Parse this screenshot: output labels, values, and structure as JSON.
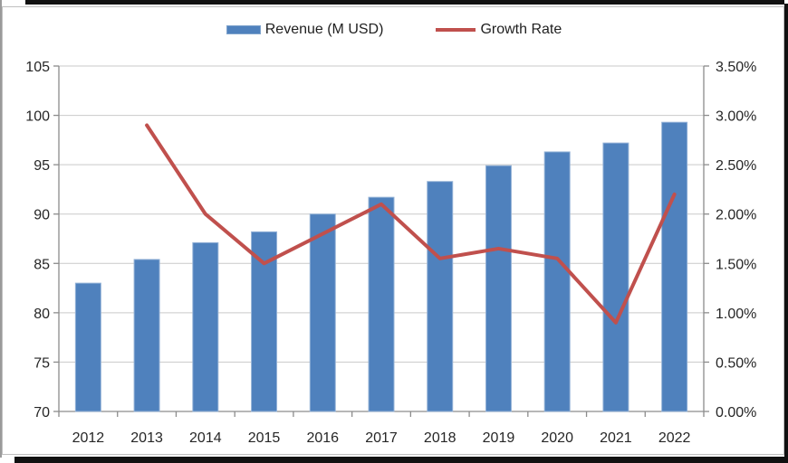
{
  "legend": {
    "items": [
      {
        "label": "Revenue (M USD)",
        "swatch": "bar"
      },
      {
        "label": "Growth Rate",
        "swatch": "line"
      }
    ]
  },
  "colors": {
    "bar_fill": "#4F81BD",
    "bar_border": "#95B3D7",
    "line": "#C0504D",
    "gridline": "#C9C9C9",
    "axis": "#8C8C8C",
    "label": "#262626"
  },
  "chart_data": {
    "type": "bar",
    "subtype": "combo-bar-line",
    "title": "",
    "grid": true,
    "legend_position": "top",
    "categories": [
      "2012",
      "2013",
      "2014",
      "2015",
      "2016",
      "2017",
      "2018",
      "2019",
      "2020",
      "2021",
      "2022"
    ],
    "series": [
      {
        "name": "Revenue (M USD)",
        "type": "bar",
        "axis": "left",
        "values": [
          83.0,
          85.4,
          87.1,
          88.2,
          90.0,
          91.7,
          93.3,
          94.9,
          96.3,
          97.2,
          99.3
        ]
      },
      {
        "name": "Growth Rate",
        "type": "line",
        "axis": "right",
        "unit": "%",
        "values": [
          null,
          2.9,
          2.0,
          1.5,
          1.8,
          2.1,
          1.55,
          1.65,
          1.55,
          0.9,
          2.2
        ]
      }
    ],
    "left_axis": {
      "min": 70,
      "max": 105,
      "step": 5,
      "tick_labels": [
        "70",
        "75",
        "80",
        "85",
        "90",
        "95",
        "100",
        "105"
      ]
    },
    "right_axis": {
      "min": 0,
      "max": 3.5,
      "step": 0.5,
      "tick_labels": [
        "0.00%",
        "0.50%",
        "1.00%",
        "1.50%",
        "2.00%",
        "2.50%",
        "3.00%",
        "3.50%"
      ]
    }
  }
}
